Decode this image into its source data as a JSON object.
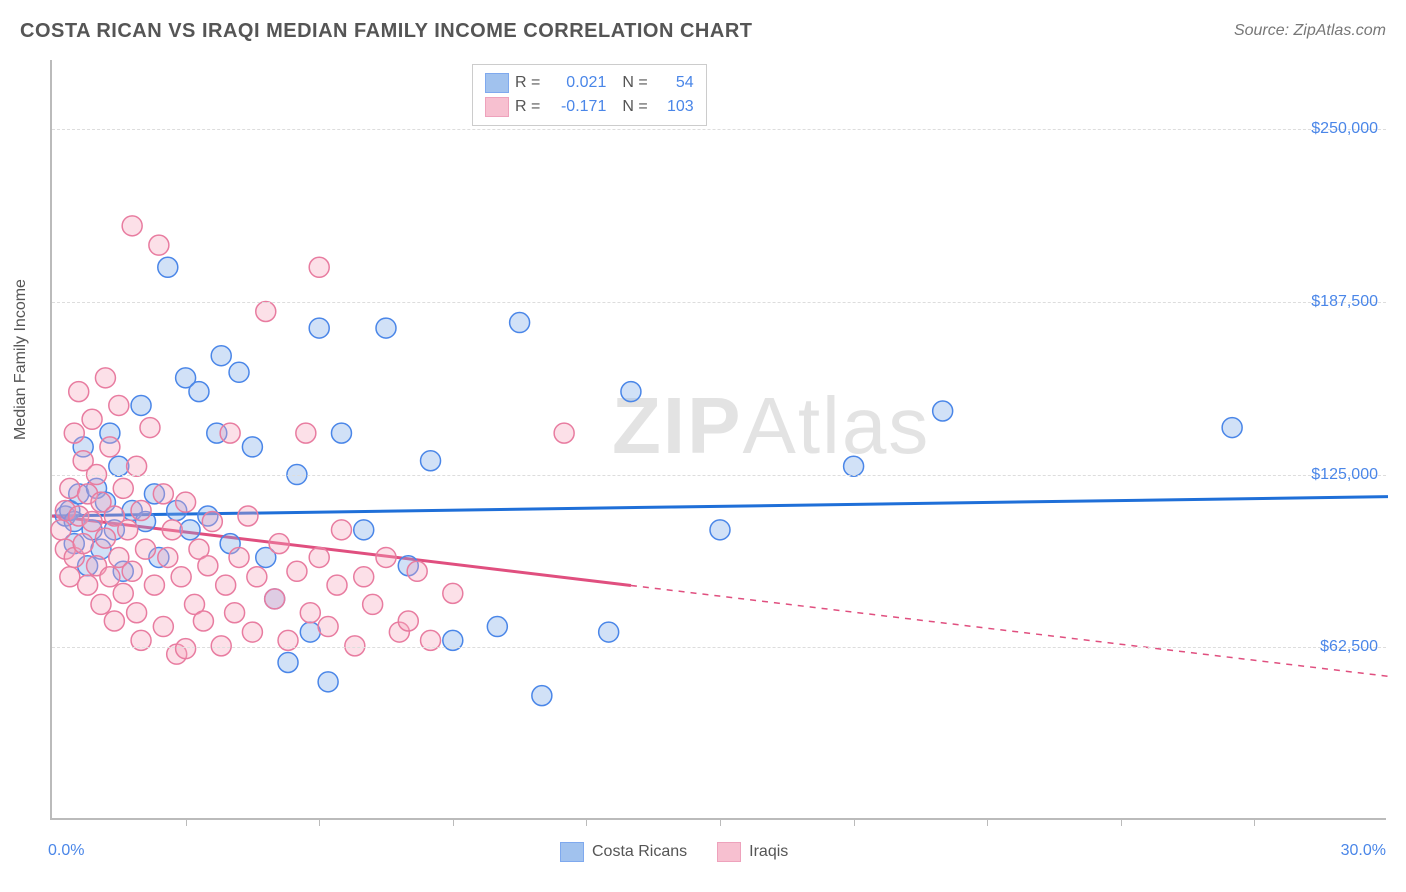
{
  "title": "COSTA RICAN VS IRAQI MEDIAN FAMILY INCOME CORRELATION CHART",
  "source": "Source: ZipAtlas.com",
  "watermark_bold": "ZIP",
  "watermark_light": "Atlas",
  "ylabel": "Median Family Income",
  "chart": {
    "type": "scatter",
    "xlim": [
      0,
      30
    ],
    "ylim": [
      0,
      275000
    ],
    "x_unit": "%",
    "y_prefix": "$",
    "background_color": "#ffffff",
    "axis_color": "#bbbbbb",
    "grid_color": "#dddddd",
    "grid_dash": "4,4",
    "yticks": [
      62500,
      125000,
      187500,
      250000
    ],
    "ytick_labels": [
      "$62,500",
      "$125,000",
      "$187,500",
      "$250,000"
    ],
    "xticks": [
      3,
      6,
      9,
      12,
      15,
      18,
      21,
      24,
      27
    ],
    "xlabel_min": "0.0%",
    "xlabel_max": "30.0%",
    "marker_radius": 10,
    "marker_fill_opacity": 0.35,
    "marker_stroke_width": 1.5,
    "trend_line_width": 3,
    "series": [
      {
        "name": "Costa Ricans",
        "color": "#7aa9e8",
        "stroke": "#4a86e8",
        "line_color": "#1f6fd8",
        "R": "0.021",
        "N": "54",
        "trend": {
          "x1": 0,
          "y1": 110000,
          "x2": 30,
          "y2": 117000,
          "solid_until_x": 30
        },
        "points": [
          [
            0.3,
            110000
          ],
          [
            0.4,
            112000
          ],
          [
            0.5,
            108000
          ],
          [
            0.5,
            100000
          ],
          [
            0.6,
            118000
          ],
          [
            0.7,
            135000
          ],
          [
            0.8,
            92000
          ],
          [
            0.9,
            105000
          ],
          [
            1.0,
            120000
          ],
          [
            1.1,
            98000
          ],
          [
            1.2,
            115000
          ],
          [
            1.3,
            140000
          ],
          [
            1.4,
            105000
          ],
          [
            1.5,
            128000
          ],
          [
            1.6,
            90000
          ],
          [
            1.8,
            112000
          ],
          [
            2.0,
            150000
          ],
          [
            2.1,
            108000
          ],
          [
            2.3,
            118000
          ],
          [
            2.4,
            95000
          ],
          [
            2.6,
            200000
          ],
          [
            2.8,
            112000
          ],
          [
            3.0,
            160000
          ],
          [
            3.1,
            105000
          ],
          [
            3.3,
            155000
          ],
          [
            3.5,
            110000
          ],
          [
            3.7,
            140000
          ],
          [
            3.8,
            168000
          ],
          [
            4.0,
            100000
          ],
          [
            4.2,
            162000
          ],
          [
            4.5,
            135000
          ],
          [
            4.8,
            95000
          ],
          [
            5.0,
            80000
          ],
          [
            5.3,
            57000
          ],
          [
            5.5,
            125000
          ],
          [
            5.8,
            68000
          ],
          [
            6.0,
            178000
          ],
          [
            6.2,
            50000
          ],
          [
            6.5,
            140000
          ],
          [
            7.0,
            105000
          ],
          [
            7.5,
            178000
          ],
          [
            8.0,
            92000
          ],
          [
            8.5,
            130000
          ],
          [
            9.0,
            65000
          ],
          [
            10.0,
            70000
          ],
          [
            10.5,
            180000
          ],
          [
            11.0,
            45000
          ],
          [
            12.5,
            68000
          ],
          [
            13.0,
            155000
          ],
          [
            15.0,
            105000
          ],
          [
            18.0,
            128000
          ],
          [
            20.0,
            148000
          ],
          [
            26.5,
            142000
          ]
        ]
      },
      {
        "name": "Iraqis",
        "color": "#f5a6bd",
        "stroke": "#e87ca0",
        "line_color": "#e04f7f",
        "R": "-0.171",
        "N": "103",
        "trend": {
          "x1": 0,
          "y1": 110000,
          "x2": 30,
          "y2": 52000,
          "solid_until_x": 13
        },
        "points": [
          [
            0.2,
            105000
          ],
          [
            0.3,
            112000
          ],
          [
            0.3,
            98000
          ],
          [
            0.4,
            120000
          ],
          [
            0.4,
            88000
          ],
          [
            0.5,
            140000
          ],
          [
            0.5,
            95000
          ],
          [
            0.6,
            110000
          ],
          [
            0.6,
            155000
          ],
          [
            0.7,
            100000
          ],
          [
            0.7,
            130000
          ],
          [
            0.8,
            85000
          ],
          [
            0.8,
            118000
          ],
          [
            0.9,
            108000
          ],
          [
            0.9,
            145000
          ],
          [
            1.0,
            92000
          ],
          [
            1.0,
            125000
          ],
          [
            1.1,
            78000
          ],
          [
            1.1,
            115000
          ],
          [
            1.2,
            102000
          ],
          [
            1.2,
            160000
          ],
          [
            1.3,
            88000
          ],
          [
            1.3,
            135000
          ],
          [
            1.4,
            72000
          ],
          [
            1.4,
            110000
          ],
          [
            1.5,
            95000
          ],
          [
            1.5,
            150000
          ],
          [
            1.6,
            82000
          ],
          [
            1.6,
            120000
          ],
          [
            1.7,
            105000
          ],
          [
            1.8,
            215000
          ],
          [
            1.8,
            90000
          ],
          [
            1.9,
            75000
          ],
          [
            1.9,
            128000
          ],
          [
            2.0,
            65000
          ],
          [
            2.0,
            112000
          ],
          [
            2.1,
            98000
          ],
          [
            2.2,
            142000
          ],
          [
            2.3,
            85000
          ],
          [
            2.4,
            208000
          ],
          [
            2.5,
            70000
          ],
          [
            2.5,
            118000
          ],
          [
            2.6,
            95000
          ],
          [
            2.7,
            105000
          ],
          [
            2.8,
            60000
          ],
          [
            2.9,
            88000
          ],
          [
            3.0,
            62000
          ],
          [
            3.0,
            115000
          ],
          [
            3.2,
            78000
          ],
          [
            3.3,
            98000
          ],
          [
            3.4,
            72000
          ],
          [
            3.5,
            92000
          ],
          [
            3.6,
            108000
          ],
          [
            3.8,
            63000
          ],
          [
            3.9,
            85000
          ],
          [
            4.0,
            140000
          ],
          [
            4.1,
            75000
          ],
          [
            4.2,
            95000
          ],
          [
            4.4,
            110000
          ],
          [
            4.5,
            68000
          ],
          [
            4.6,
            88000
          ],
          [
            4.8,
            184000
          ],
          [
            5.0,
            80000
          ],
          [
            5.1,
            100000
          ],
          [
            5.3,
            65000
          ],
          [
            5.5,
            90000
          ],
          [
            5.7,
            140000
          ],
          [
            5.8,
            75000
          ],
          [
            6.0,
            200000
          ],
          [
            6.0,
            95000
          ],
          [
            6.2,
            70000
          ],
          [
            6.4,
            85000
          ],
          [
            6.5,
            105000
          ],
          [
            6.8,
            63000
          ],
          [
            7.0,
            88000
          ],
          [
            7.2,
            78000
          ],
          [
            7.5,
            95000
          ],
          [
            7.8,
            68000
          ],
          [
            8.0,
            72000
          ],
          [
            8.2,
            90000
          ],
          [
            8.5,
            65000
          ],
          [
            9.0,
            82000
          ],
          [
            11.5,
            140000
          ]
        ]
      }
    ]
  },
  "stats_legend": {
    "r_label": "R =",
    "n_label": "N =",
    "value_color": "#4a86e8",
    "text_color": "#555555"
  },
  "bottom_legend_labels": [
    "Costa Ricans",
    "Iraqis"
  ]
}
